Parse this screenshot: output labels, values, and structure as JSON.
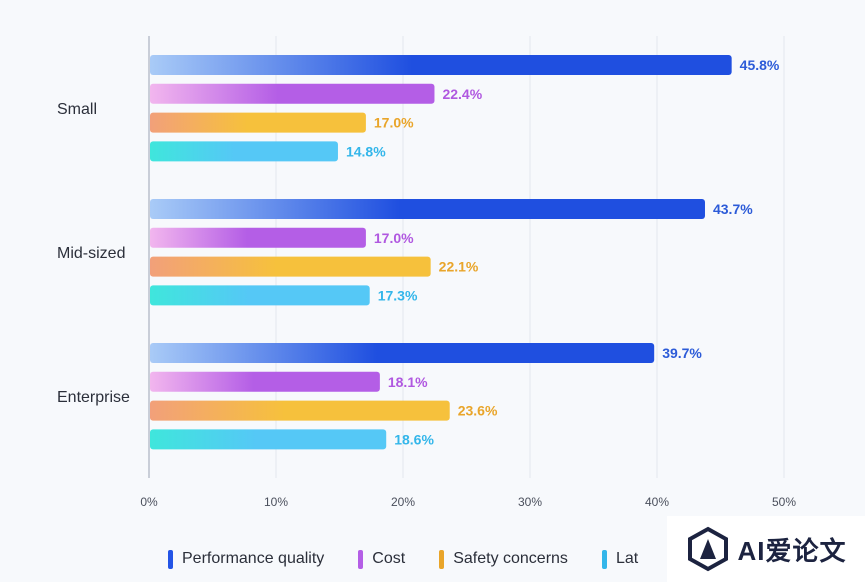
{
  "chart_data": {
    "type": "bar",
    "orientation": "horizontal",
    "categories": [
      "Small",
      "Mid-sized",
      "Enterprise"
    ],
    "series": [
      {
        "name": "Performance quality",
        "values": [
          45.8,
          43.7,
          39.7
        ],
        "color": "#1f4fe0",
        "color_start": "#a9cbf7",
        "label_color": "#2c5bd8"
      },
      {
        "name": "Cost",
        "values": [
          22.4,
          17.0,
          18.1
        ],
        "color": "#b45ee6",
        "color_start": "#f2b6ee",
        "label_color": "#b058e0"
      },
      {
        "name": "Safety concerns",
        "values": [
          17.0,
          22.1,
          23.6
        ],
        "color": "#f6c13c",
        "color_start": "#f2a07a",
        "label_color": "#e9a52a"
      },
      {
        "name": "Latency",
        "values": [
          14.8,
          17.3,
          18.6
        ],
        "color": "#55c8f6",
        "color_start": "#3fe6dc",
        "label_color": "#33b6ea"
      }
    ],
    "value_labels": [
      [
        "45.8%",
        "43.7%",
        "39.7%"
      ],
      [
        "22.4%",
        "17.0%",
        "18.1%"
      ],
      [
        "17.0%",
        "22.1%",
        "23.6%"
      ],
      [
        "14.8%",
        "17.3%",
        "18.6%"
      ]
    ],
    "xticks": [
      0,
      10,
      20,
      30,
      40,
      50
    ],
    "xtick_labels": [
      "0%",
      "10%",
      "20%",
      "30%",
      "40%",
      "50%"
    ],
    "xlim": [
      0,
      50
    ],
    "grid": "vertical",
    "legend_position": "bottom",
    "title": "",
    "xlabel": "",
    "ylabel": ""
  },
  "legend": {
    "items": [
      {
        "label": "Performance quality",
        "color": "#2354e6"
      },
      {
        "label": "Cost",
        "color": "#b45ee6"
      },
      {
        "label": "Safety concerns",
        "color": "#e9a52a"
      },
      {
        "label": "Lat",
        "color": "#33b6ea"
      }
    ]
  },
  "watermark": {
    "text": "AI爱论文"
  }
}
